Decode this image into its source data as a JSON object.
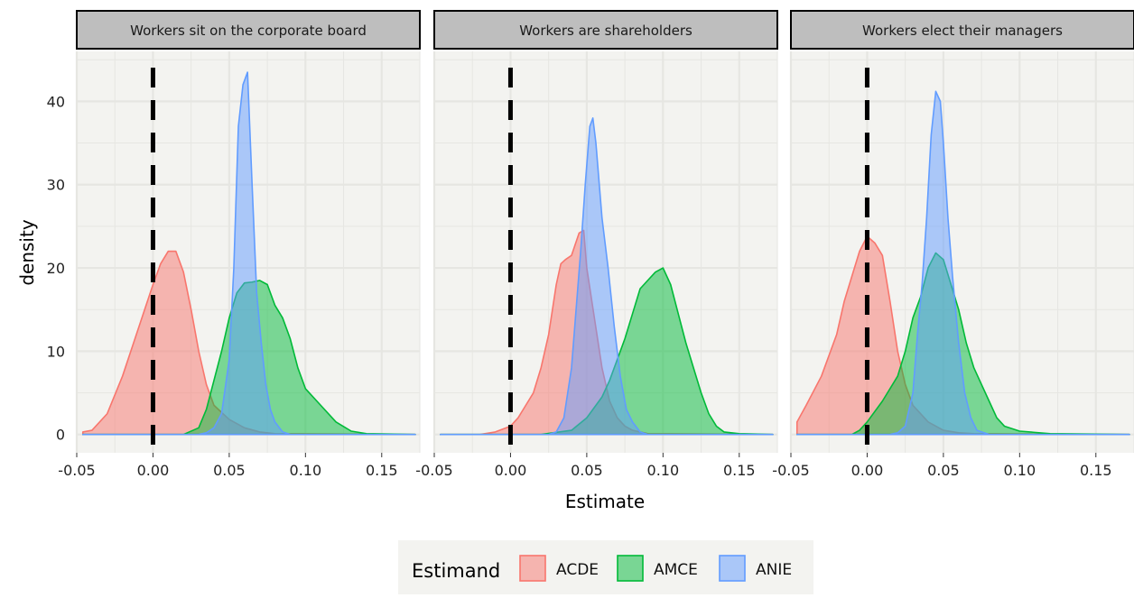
{
  "chart_data": {
    "type": "area",
    "xlabel": "Estimate",
    "ylabel": "density",
    "xlim": [
      -0.05,
      0.175
    ],
    "ylim": [
      -2.2,
      46
    ],
    "x_ticks": [
      -0.05,
      0.0,
      0.05,
      0.1,
      0.15
    ],
    "x_tick_labels": [
      "-0.05",
      "0.00",
      "0.05",
      "0.10",
      "0.15"
    ],
    "y_ticks": [
      0,
      10,
      20,
      30,
      40
    ],
    "y_tick_labels": [
      "0",
      "10",
      "20",
      "30",
      "40"
    ],
    "reference_line": {
      "x": 0,
      "style": "dashed"
    },
    "grid": true,
    "legend": {
      "title": "Estimand",
      "placement": "bottom",
      "entries": [
        {
          "label": "ACDE",
          "color": "#F8766D"
        },
        {
          "label": "AMCE",
          "color": "#00BA38"
        },
        {
          "label": "ANIE",
          "color": "#619CFF"
        }
      ]
    },
    "colors": {
      "panel_bg": "#F3F3F0",
      "strip_bg": "#BEBEBE",
      "grid": "#E6E6E2"
    },
    "panels": [
      {
        "title": "Workers sit on the corporate board",
        "series": [
          {
            "name": "ACDE",
            "points": [
              [
                -0.046,
                0.3
              ],
              [
                -0.04,
                0.5
              ],
              [
                -0.03,
                2.5
              ],
              [
                -0.02,
                7
              ],
              [
                -0.01,
                12.5
              ],
              [
                0.0,
                18
              ],
              [
                0.005,
                20.5
              ],
              [
                0.01,
                22
              ],
              [
                0.015,
                22
              ],
              [
                0.02,
                19.5
              ],
              [
                0.025,
                15
              ],
              [
                0.03,
                10
              ],
              [
                0.035,
                6
              ],
              [
                0.04,
                3.5
              ],
              [
                0.05,
                1.8
              ],
              [
                0.06,
                0.8
              ],
              [
                0.07,
                0.3
              ],
              [
                0.08,
                0.1
              ],
              [
                0.172,
                0
              ]
            ]
          },
          {
            "name": "AMCE",
            "points": [
              [
                -0.046,
                0
              ],
              [
                0.02,
                0
              ],
              [
                0.03,
                0.8
              ],
              [
                0.035,
                3
              ],
              [
                0.04,
                6.5
              ],
              [
                0.045,
                10
              ],
              [
                0.05,
                14
              ],
              [
                0.055,
                17
              ],
              [
                0.06,
                18.2
              ],
              [
                0.065,
                18.3
              ],
              [
                0.07,
                18.5
              ],
              [
                0.075,
                18
              ],
              [
                0.08,
                15.5
              ],
              [
                0.085,
                14
              ],
              [
                0.09,
                11.5
              ],
              [
                0.095,
                8
              ],
              [
                0.1,
                5.5
              ],
              [
                0.11,
                3.5
              ],
              [
                0.12,
                1.5
              ],
              [
                0.13,
                0.4
              ],
              [
                0.14,
                0.1
              ],
              [
                0.172,
                0
              ]
            ]
          },
          {
            "name": "ANIE",
            "points": [
              [
                -0.046,
                0
              ],
              [
                0.03,
                0
              ],
              [
                0.035,
                0.2
              ],
              [
                0.04,
                0.8
              ],
              [
                0.045,
                2.5
              ],
              [
                0.05,
                9
              ],
              [
                0.053,
                20
              ],
              [
                0.056,
                37
              ],
              [
                0.059,
                42
              ],
              [
                0.062,
                43.5
              ],
              [
                0.065,
                30
              ],
              [
                0.068,
                17
              ],
              [
                0.071,
                11
              ],
              [
                0.074,
                6
              ],
              [
                0.077,
                3
              ],
              [
                0.08,
                1.5
              ],
              [
                0.085,
                0.3
              ],
              [
                0.09,
                0
              ],
              [
                0.172,
                0
              ]
            ]
          }
        ]
      },
      {
        "title": "Workers are shareholders",
        "series": [
          {
            "name": "ACDE",
            "points": [
              [
                -0.046,
                0
              ],
              [
                -0.02,
                0
              ],
              [
                -0.01,
                0.3
              ],
              [
                0.0,
                1
              ],
              [
                0.005,
                2
              ],
              [
                0.01,
                3.5
              ],
              [
                0.015,
                5
              ],
              [
                0.02,
                8
              ],
              [
                0.025,
                12
              ],
              [
                0.03,
                18
              ],
              [
                0.033,
                20.5
              ],
              [
                0.036,
                21
              ],
              [
                0.04,
                21.5
              ],
              [
                0.045,
                24.2
              ],
              [
                0.048,
                24.5
              ],
              [
                0.05,
                20
              ],
              [
                0.055,
                14
              ],
              [
                0.06,
                8
              ],
              [
                0.065,
                4
              ],
              [
                0.07,
                2
              ],
              [
                0.075,
                1
              ],
              [
                0.08,
                0.5
              ],
              [
                0.09,
                0.1
              ],
              [
                0.172,
                0
              ]
            ]
          },
          {
            "name": "AMCE",
            "points": [
              [
                -0.046,
                0
              ],
              [
                0.02,
                0
              ],
              [
                0.04,
                0.5
              ],
              [
                0.05,
                2
              ],
              [
                0.06,
                4.5
              ],
              [
                0.065,
                6.5
              ],
              [
                0.07,
                9
              ],
              [
                0.075,
                11.5
              ],
              [
                0.08,
                14.5
              ],
              [
                0.085,
                17.5
              ],
              [
                0.09,
                18.5
              ],
              [
                0.095,
                19.5
              ],
              [
                0.1,
                20
              ],
              [
                0.105,
                18
              ],
              [
                0.11,
                14.5
              ],
              [
                0.115,
                11
              ],
              [
                0.12,
                8
              ],
              [
                0.125,
                5
              ],
              [
                0.13,
                2.5
              ],
              [
                0.135,
                1
              ],
              [
                0.14,
                0.3
              ],
              [
                0.15,
                0.1
              ],
              [
                0.172,
                0
              ]
            ]
          },
          {
            "name": "ANIE",
            "points": [
              [
                -0.046,
                0
              ],
              [
                0.025,
                0
              ],
              [
                0.03,
                0.3
              ],
              [
                0.035,
                2
              ],
              [
                0.04,
                8
              ],
              [
                0.043,
                15
              ],
              [
                0.046,
                22
              ],
              [
                0.049,
                30
              ],
              [
                0.052,
                37
              ],
              [
                0.054,
                38
              ],
              [
                0.056,
                35
              ],
              [
                0.06,
                26
              ],
              [
                0.064,
                20
              ],
              [
                0.068,
                13
              ],
              [
                0.072,
                7
              ],
              [
                0.076,
                3
              ],
              [
                0.08,
                1.5
              ],
              [
                0.085,
                0.3
              ],
              [
                0.09,
                0
              ],
              [
                0.172,
                0
              ]
            ]
          }
        ]
      },
      {
        "title": "Workers elect their managers",
        "series": [
          {
            "name": "ACDE",
            "points": [
              [
                -0.046,
                1.5
              ],
              [
                -0.04,
                3.5
              ],
              [
                -0.03,
                7
              ],
              [
                -0.02,
                12
              ],
              [
                -0.015,
                16
              ],
              [
                -0.01,
                19
              ],
              [
                -0.005,
                22
              ],
              [
                0.0,
                23.8
              ],
              [
                0.005,
                23
              ],
              [
                0.01,
                21.5
              ],
              [
                0.015,
                16
              ],
              [
                0.02,
                10
              ],
              [
                0.025,
                6
              ],
              [
                0.03,
                3.5
              ],
              [
                0.04,
                1.5
              ],
              [
                0.05,
                0.5
              ],
              [
                0.06,
                0.2
              ],
              [
                0.07,
                0.1
              ],
              [
                0.172,
                0
              ]
            ]
          },
          {
            "name": "AMCE",
            "points": [
              [
                -0.046,
                0
              ],
              [
                -0.01,
                0
              ],
              [
                -0.005,
                0.5
              ],
              [
                0.0,
                1.5
              ],
              [
                0.01,
                4
              ],
              [
                0.02,
                7
              ],
              [
                0.025,
                10
              ],
              [
                0.03,
                14
              ],
              [
                0.035,
                16.5
              ],
              [
                0.04,
                20
              ],
              [
                0.045,
                21.8
              ],
              [
                0.05,
                21
              ],
              [
                0.055,
                18
              ],
              [
                0.06,
                15
              ],
              [
                0.065,
                11
              ],
              [
                0.07,
                8
              ],
              [
                0.075,
                6
              ],
              [
                0.08,
                4
              ],
              [
                0.085,
                2
              ],
              [
                0.09,
                1
              ],
              [
                0.1,
                0.4
              ],
              [
                0.12,
                0.1
              ],
              [
                0.172,
                0
              ]
            ]
          },
          {
            "name": "ANIE",
            "points": [
              [
                -0.046,
                0
              ],
              [
                0.015,
                0
              ],
              [
                0.02,
                0.2
              ],
              [
                0.025,
                1
              ],
              [
                0.03,
                5
              ],
              [
                0.033,
                12
              ],
              [
                0.036,
                18
              ],
              [
                0.039,
                26
              ],
              [
                0.042,
                36
              ],
              [
                0.045,
                41.2
              ],
              [
                0.048,
                40
              ],
              [
                0.05,
                35
              ],
              [
                0.053,
                26
              ],
              [
                0.056,
                19
              ],
              [
                0.06,
                11
              ],
              [
                0.064,
                5
              ],
              [
                0.068,
                2
              ],
              [
                0.072,
                0.5
              ],
              [
                0.08,
                0
              ],
              [
                0.172,
                0
              ]
            ]
          }
        ]
      }
    ]
  }
}
